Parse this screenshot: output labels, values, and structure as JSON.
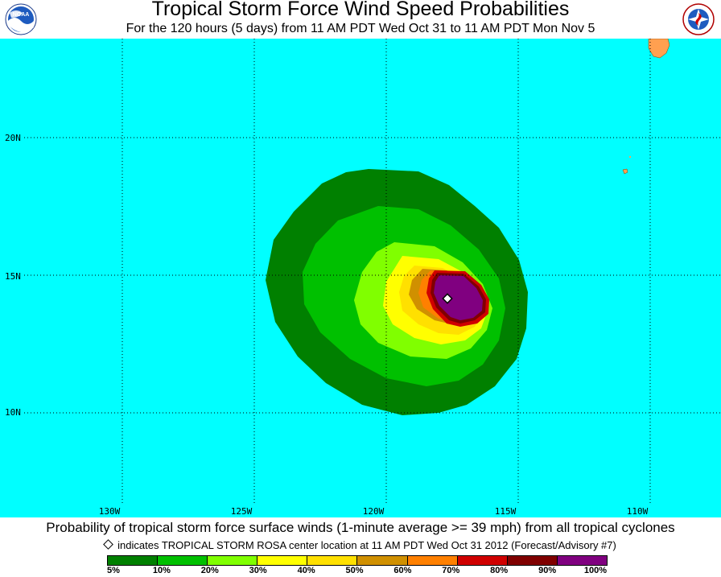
{
  "header": {
    "title": "Tropical Storm Force Wind Speed Probabilities",
    "subtitle": "For the 120 hours (5 days) from 11 AM PDT Wed Oct 31 to 11 AM PDT Mon Nov 5",
    "logos": {
      "left": "noaa-logo",
      "right": "national-weather-service-logo",
      "left_text": "NOAA"
    }
  },
  "map": {
    "ocean_color": "#00ffff",
    "land_color": "#ffa050",
    "lat_labels": [
      {
        "text": "20N",
        "value": 20
      },
      {
        "text": "15N",
        "value": 15
      },
      {
        "text": "10N",
        "value": 10
      }
    ],
    "lon_labels": [
      {
        "text": "130W",
        "value": -130
      },
      {
        "text": "125W",
        "value": -125
      },
      {
        "text": "120W",
        "value": -120
      },
      {
        "text": "115W",
        "value": -115
      },
      {
        "text": "110W",
        "value": -110
      }
    ],
    "storm_center_marker": "white-diamond"
  },
  "footer": {
    "caption": "Probability of tropical storm force surface winds (1-minute average >= 39 mph) from all tropical cyclones",
    "note": "indicates TROPICAL STORM ROSA center location at 11 AM PDT Wed Oct 31 2012 (Forecast/Advisory #7)"
  },
  "legend": {
    "colors": [
      "#008000",
      "#00c000",
      "#80ff00",
      "#ffff00",
      "#ffe000",
      "#d09000",
      "#ff8000",
      "#d00000",
      "#800000",
      "#800080"
    ],
    "labels": [
      "5%",
      "10%",
      "20%",
      "30%",
      "40%",
      "50%",
      "60%",
      "70%",
      "80%",
      "90%",
      "100%"
    ]
  }
}
